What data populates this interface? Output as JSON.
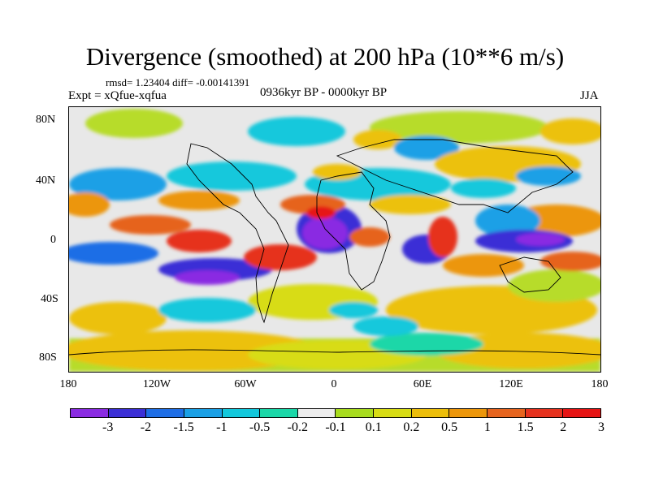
{
  "title": "Divergence (smoothed) at 200 hPa (10**6 m/s)",
  "stats": "rmsd= 1.23404 diff= -0.00141391",
  "experiment": "Expt = xQfue-xqfua",
  "period": "0936kyr BP - 0000kyr BP",
  "season": "JJA",
  "y_axis": [
    "80N",
    "40N",
    "0",
    "40S",
    "80S"
  ],
  "x_axis": [
    "180",
    "120W",
    "60W",
    "0",
    "60E",
    "120E",
    "180"
  ],
  "colorbar": {
    "colors": [
      "#8a2be2",
      "#3b2fd6",
      "#1e6ee6",
      "#1aa0e6",
      "#12c8dc",
      "#1ad7a8",
      "#ececec",
      "#a8dc1e",
      "#d7dc14",
      "#ecbe0a",
      "#ec960a",
      "#e6641e",
      "#e6321e",
      "#e61414"
    ],
    "labels": [
      "-3",
      "-2",
      "-1.5",
      "-1",
      "-0.5",
      "-0.2",
      "-0.1",
      "0.1",
      "0.2",
      "0.5",
      "1",
      "1.5",
      "2",
      "3"
    ]
  }
}
